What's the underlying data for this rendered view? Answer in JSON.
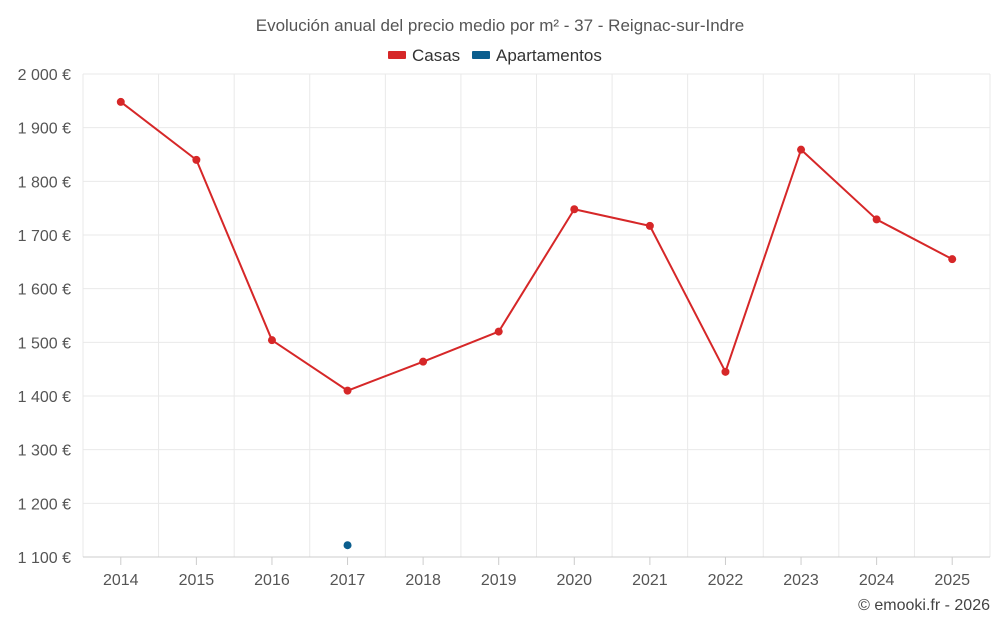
{
  "chart_data": {
    "type": "line",
    "title": "Evolución anual del precio medio por m² - 37 - Reignac-sur-Indre",
    "categories": [
      "2014",
      "2015",
      "2016",
      "2017",
      "2018",
      "2019",
      "2020",
      "2021",
      "2022",
      "2023",
      "2024",
      "2025"
    ],
    "series": [
      {
        "name": "Casas",
        "color": "#d62728",
        "values": [
          1948,
          1840,
          1504,
          1410,
          1464,
          1520,
          1748,
          1717,
          1445,
          1859,
          1729,
          1655
        ]
      },
      {
        "name": "Apartamentos",
        "color": "#0b5e8e",
        "values": [
          null,
          null,
          null,
          1122,
          null,
          null,
          null,
          null,
          null,
          null,
          null,
          null
        ]
      }
    ],
    "y_ticks": [
      1100,
      1200,
      1300,
      1400,
      1500,
      1600,
      1700,
      1800,
      1900,
      2000
    ],
    "y_tick_labels": [
      "1 100 €",
      "1 200 €",
      "1 300 €",
      "1 400 €",
      "1 500 €",
      "1 600 €",
      "1 700 €",
      "1 800 €",
      "1 900 €",
      "2 000 €"
    ],
    "ylim": [
      1100,
      2000
    ],
    "xlabel": "",
    "ylabel": "",
    "grid": true,
    "legend_position": "top-center"
  },
  "credit": "© emooki.fr - 2026"
}
